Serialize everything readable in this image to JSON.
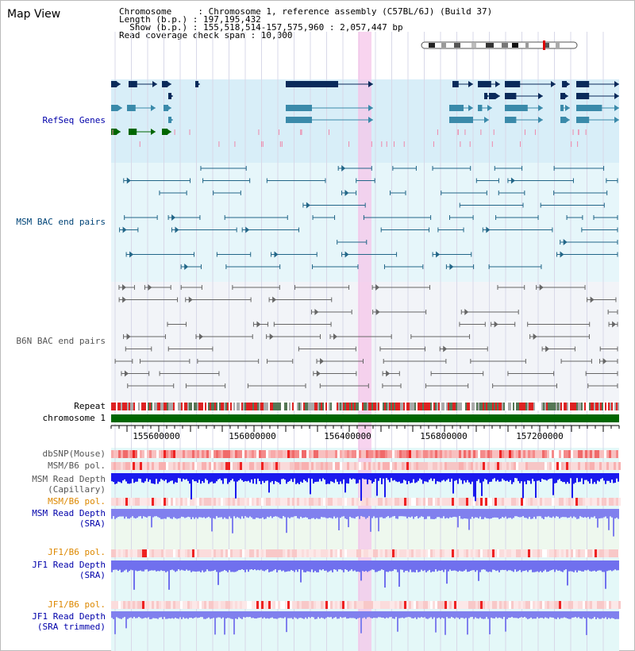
{
  "title": "Map View",
  "info": {
    "chromosome": "Chromosome     : Chromosome 1, reference assembly (C57BL/6J) (Build 37)",
    "length": "Length (b.p.) : 197,195,432",
    "show": "  Show (b.p.) : 155,518,514-157,575,960 : 2,057,447 bp",
    "coverage": "Read coverage check span : 10,000"
  },
  "labels": {
    "refseq": "RefSeq Genes",
    "msm_bac": "MSM BAC end pairs",
    "b6n_bac": "B6N BAC end pairs",
    "repeat": "Repeat",
    "chromosome": "chromosome 1",
    "dbsnp": "dbSNP(Mouse)",
    "msm_b6_pol": "MSM/B6 pol.",
    "msm_depth_cap_1": "MSM Read Depth",
    "msm_depth_cap_2": "(Capillary)",
    "msm_b6_pol_sra": "MSM/B6 pol.",
    "msm_depth_sra_1": "MSM Read Depth",
    "msm_depth_sra_2": "(SRA)",
    "jf1_b6_pol_1": "JF1/B6 pol.",
    "jf1_depth_sra_1": "JF1 Read Depth",
    "jf1_depth_sra_2": "(SRA)",
    "jf1_b6_pol_2": "JF1/B6 pol.",
    "jf1_depth_trim_1": "JF1 Read Depth",
    "jf1_depth_trim_2": "(SRA trimmed)"
  },
  "axis_ticks": [
    "155600000",
    "156000000",
    "156400000",
    "156800000",
    "157200000"
  ],
  "colors": {
    "refseq_bg": "#d8eef8",
    "bac_bg": "#e6f6fa",
    "b6n_bg": "#f2f4f8",
    "highlight": "#f6c6ea",
    "chromosome_bar": "#006600",
    "gene_dark": "#0a2a5a",
    "gene_teal": "#3a8aaa",
    "gene_green": "#006600",
    "depth_cap": "#1a1aee",
    "depth_sra": "#8080ee"
  },
  "icons": {
    "ideogram": "chromosome-ideogram-icon"
  }
}
